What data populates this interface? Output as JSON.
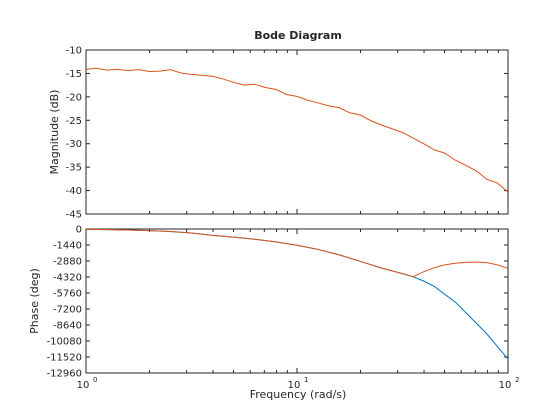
{
  "chart_data": {
    "type": "line",
    "title": "Bode Diagram",
    "xlabel": "Frequency  (rad/s)",
    "xscale": "log",
    "xlim": [
      1,
      100
    ],
    "x_ticks": [
      {
        "value": 1,
        "base": "10",
        "exp": "0"
      },
      {
        "value": 10,
        "base": "10",
        "exp": "1"
      },
      {
        "value": 100,
        "base": "10",
        "exp": "2"
      }
    ],
    "grid": false,
    "subplots": [
      {
        "name": "magnitude",
        "ylabel": "Magnitude (dB)",
        "ylim": [
          -45,
          -10
        ],
        "yticks": [
          -10,
          -15,
          -20,
          -25,
          -30,
          -35,
          -40,
          -45
        ],
        "series": [
          {
            "color": "#d95319",
            "x": [
              1,
              1.12,
              1.26,
              1.41,
              1.58,
              1.78,
              2,
              2.24,
              2.51,
              2.82,
              3.16,
              3.55,
              3.98,
              4.47,
              5.01,
              5.62,
              6.31,
              7.08,
              7.94,
              8.91,
              10,
              11.2,
              12.6,
              14.1,
              15.8,
              17.8,
              20,
              22.4,
              25.1,
              28.2,
              31.6,
              35.5,
              39.8,
              44.7,
              50.1,
              56.2,
              63.1,
              70.8,
              79.4,
              89.1,
              100
            ],
            "y": [
              -14.1,
              -13.9,
              -14.3,
              -14.1,
              -14.4,
              -14.2,
              -14.6,
              -14.5,
              -14.2,
              -14.9,
              -15.2,
              -15.4,
              -15.6,
              -16.2,
              -16.9,
              -17.5,
              -17.3,
              -18.0,
              -18.4,
              -19.5,
              -19.9,
              -20.7,
              -21.3,
              -21.9,
              -22.3,
              -23.4,
              -23.9,
              -25.1,
              -26.0,
              -26.8,
              -27.6,
              -28.8,
              -30.0,
              -31.3,
              -32.0,
              -33.5,
              -34.6,
              -35.8,
              -37.6,
              -38.4,
              -40.3
            ]
          }
        ]
      },
      {
        "name": "phase",
        "ylabel": "Phase (deg)",
        "ylim": [
          -12960,
          0
        ],
        "yticks": [
          0,
          -1440,
          -2880,
          -4320,
          -5760,
          -7200,
          -8640,
          -10080,
          -11520,
          -12960
        ],
        "series": [
          {
            "color": "#0072bd",
            "x": [
              1,
              1.26,
              1.58,
              2,
              2.51,
              3.16,
              3.98,
              5.01,
              6.31,
              7.94,
              10,
              12.6,
              15.8,
              20,
              25.1,
              31.6,
              35.5,
              39.8,
              44.7,
              50.1,
              56.2,
              63.1,
              70.8,
              79.4,
              89.1,
              100
            ],
            "y": [
              -36,
              -58,
              -92,
              -145,
              -230,
              -365,
              -578,
              -730,
              -920,
              -1160,
              -1460,
              -1840,
              -2320,
              -2920,
              -3510,
              -4020,
              -4290,
              -4680,
              -5160,
              -5870,
              -6560,
              -7520,
              -8480,
              -9440,
              -10580,
              -11700
            ]
          },
          {
            "color": "#d95319",
            "x": [
              1,
              1.26,
              1.58,
              2,
              2.51,
              3.16,
              3.98,
              5.01,
              6.31,
              7.94,
              10,
              12.6,
              15.8,
              20,
              25.1,
              31.6,
              35.5,
              39.8,
              44.7,
              50.1,
              56.2,
              63.1,
              70.8,
              79.4,
              89.1,
              100
            ],
            "y": [
              -36,
              -58,
              -92,
              -145,
              -230,
              -365,
              -578,
              -730,
              -920,
              -1160,
              -1460,
              -1840,
              -2320,
              -2920,
              -3510,
              -4020,
              -4290,
              -3850,
              -3480,
              -3230,
              -3080,
              -3000,
              -2980,
              -3030,
              -3230,
              -3550
            ]
          }
        ]
      }
    ]
  }
}
